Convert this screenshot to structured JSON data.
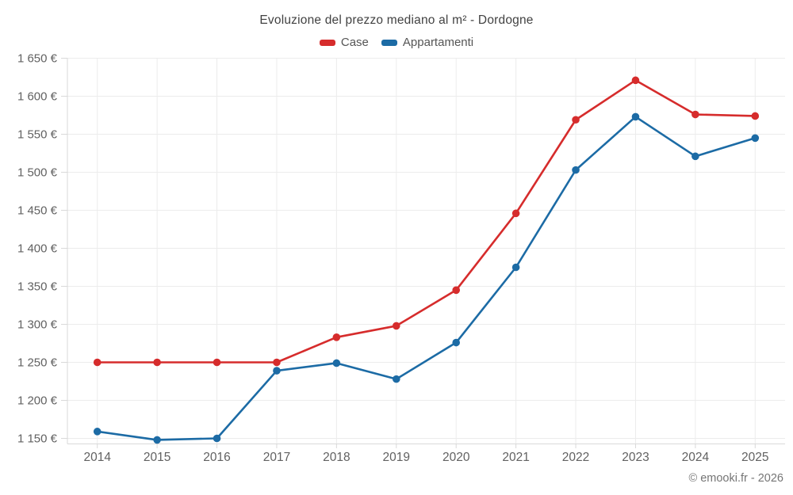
{
  "page": {
    "footer": "© emooki.fr - 2026"
  },
  "colors": {
    "case": "#d62c2c",
    "appartamenti": "#1c6ba5",
    "grid": "#ececec",
    "axis": "#d9d9d9",
    "tick_label": "#616161",
    "title_text": "#424242",
    "legend_text": "#555555",
    "footer_text": "#757575",
    "background": "#ffffff"
  },
  "chart_data": {
    "type": "line",
    "title": "Evoluzione del prezzo mediano al m² - Dordogne",
    "categories": [
      "2014",
      "2015",
      "2016",
      "2017",
      "2018",
      "2019",
      "2020",
      "2021",
      "2022",
      "2023",
      "2024",
      "2025"
    ],
    "series": [
      {
        "name": "Case",
        "color": "#d62c2c",
        "values": [
          1250,
          1250,
          1250,
          1250,
          1283,
          1298,
          1345,
          1446,
          1569,
          1621,
          1576,
          1574
        ]
      },
      {
        "name": "Appartamenti",
        "color": "#1c6ba5",
        "values": [
          1159,
          1148,
          1150,
          1239,
          1249,
          1228,
          1276,
          1375,
          1503,
          1573,
          1521,
          1545
        ]
      }
    ],
    "xlabel": "",
    "ylabel": "",
    "ylim": [
      1150,
      1650
    ],
    "ytick_values": [
      1150,
      1200,
      1250,
      1300,
      1350,
      1400,
      1450,
      1500,
      1550,
      1600,
      1650
    ],
    "ytick_labels": [
      "1 150 €",
      "1 200 €",
      "1 250 €",
      "1 300 €",
      "1 350 €",
      "1 400 €",
      "1 450 €",
      "1 500 €",
      "1 550 €",
      "1 600 €",
      "1 650 €"
    ],
    "grid": true,
    "legend_position": "top",
    "marker": "circle"
  }
}
